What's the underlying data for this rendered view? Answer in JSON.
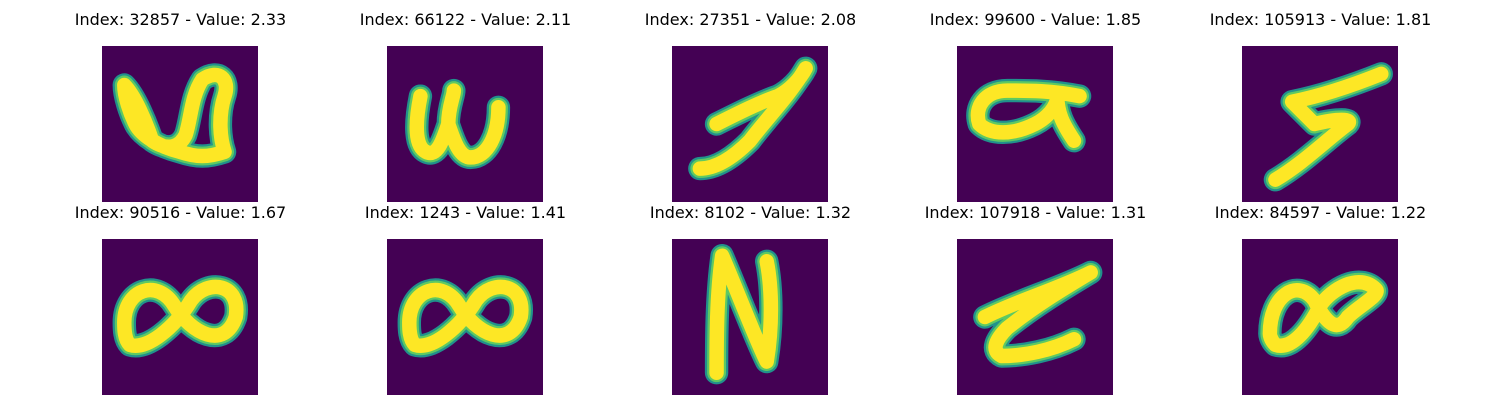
{
  "colors": {
    "background": "#440154",
    "stroke_core": "#fde725",
    "stroke_edge": "#21918c",
    "stroke_mid": "#5ec962"
  },
  "samples": [
    {
      "index": "32857",
      "value": "2.33",
      "glyph": "u-loop"
    },
    {
      "index": "66122",
      "value": "2.11",
      "glyph": "w"
    },
    {
      "index": "27351",
      "value": "2.08",
      "glyph": "j-slash"
    },
    {
      "index": "99600",
      "value": "1.85",
      "glyph": "alpha"
    },
    {
      "index": "105913",
      "value": "1.81",
      "glyph": "zigzag"
    },
    {
      "index": "90516",
      "value": "1.67",
      "glyph": "infinity"
    },
    {
      "index": "1243",
      "value": "1.41",
      "glyph": "infinity"
    },
    {
      "index": "8102",
      "value": "1.32",
      "glyph": "n"
    },
    {
      "index": "107918",
      "value": "1.31",
      "glyph": "z-scribble"
    },
    {
      "index": "84597",
      "value": "1.22",
      "glyph": "infinity-small"
    }
  ]
}
